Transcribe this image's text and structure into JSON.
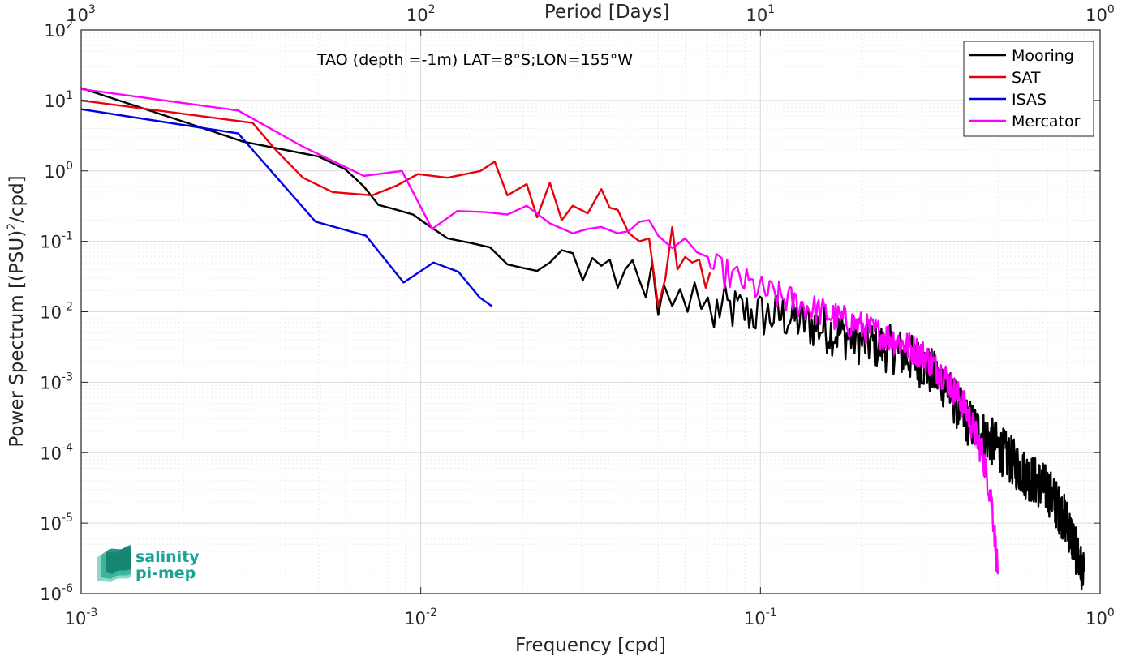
{
  "chart_data": {
    "type": "line",
    "annotation": "TAO (depth =-1m) LAT=8°S;LON=155°W",
    "xlabel": "Frequency [cpd]",
    "ylabel": "Power Spectrum [(PSU)",
    "ylabel_exponent": "2",
    "ylabel_suffix": "/cpd]",
    "top_xlabel": "Period [Days]",
    "xscale": "log",
    "yscale": "log",
    "xlim": [
      0.001,
      1
    ],
    "ylim": [
      1e-06,
      100
    ],
    "grid": true,
    "legend_position": "top-right",
    "x_ticks": [
      {
        "base": "10",
        "exp": "-3",
        "value": 0.001
      },
      {
        "base": "10",
        "exp": "-2",
        "value": 0.01
      },
      {
        "base": "10",
        "exp": "-1",
        "value": 0.1
      },
      {
        "base": "10",
        "exp": "0",
        "value": 1
      }
    ],
    "y_ticks": [
      {
        "base": "10",
        "exp": "-6",
        "value": 1e-06
      },
      {
        "base": "10",
        "exp": "-5",
        "value": 1e-05
      },
      {
        "base": "10",
        "exp": "-4",
        "value": 0.0001
      },
      {
        "base": "10",
        "exp": "-3",
        "value": 0.001
      },
      {
        "base": "10",
        "exp": "-2",
        "value": 0.01
      },
      {
        "base": "10",
        "exp": "-1",
        "value": 0.1
      },
      {
        "base": "10",
        "exp": "0",
        "value": 1
      },
      {
        "base": "10",
        "exp": "1",
        "value": 10
      },
      {
        "base": "10",
        "exp": "2",
        "value": 100
      }
    ],
    "top_ticks": [
      {
        "base": "10",
        "exp": "3",
        "value": 0.001
      },
      {
        "base": "10",
        "exp": "2",
        "value": 0.01
      },
      {
        "base": "10",
        "exp": "1",
        "value": 0.1
      },
      {
        "base": "10",
        "exp": "0",
        "value": 1
      }
    ],
    "series": [
      {
        "name": "Mooring",
        "color": "#000000",
        "generated_from": [
          [
            0.001,
            15
          ],
          [
            0.002,
            5
          ],
          [
            0.003,
            2.6
          ],
          [
            0.005,
            1.6
          ],
          [
            0.0065,
            0.8
          ],
          [
            0.0075,
            0.33
          ],
          [
            0.0095,
            0.25
          ],
          [
            0.011,
            0.17
          ],
          [
            0.012,
            0.11
          ],
          [
            0.014,
            0.095
          ],
          [
            0.016,
            0.082
          ],
          [
            0.018,
            0.047
          ],
          [
            0.02,
            0.042
          ],
          [
            0.023,
            0.038
          ],
          [
            0.026,
            0.05
          ],
          [
            0.028,
            0.07
          ],
          [
            0.031,
            0.04
          ],
          [
            0.035,
            0.042
          ],
          [
            0.04,
            0.035
          ],
          [
            0.045,
            0.03
          ],
          [
            0.05,
            0.018
          ],
          [
            0.06,
            0.016
          ],
          [
            0.07,
            0.012
          ],
          [
            0.08,
            0.011
          ],
          [
            0.1,
            0.009
          ],
          [
            0.12,
            0.0085
          ],
          [
            0.15,
            0.006
          ],
          [
            0.2,
            0.0038
          ],
          [
            0.25,
            0.0028
          ],
          [
            0.3,
            0.0018
          ],
          [
            0.35,
            0.0009
          ],
          [
            0.4,
            0.0003
          ],
          [
            0.5,
            0.00012
          ],
          [
            0.6,
            5e-05
          ],
          [
            0.7,
            3e-05
          ],
          [
            0.8,
            1e-05
          ],
          [
            0.85,
            4e-06
          ],
          [
            0.9,
            1.5e-06
          ]
        ],
        "x": [
          0.001,
          0.002,
          0.003,
          0.005,
          0.006,
          0.0068,
          0.0075,
          0.0085,
          0.0095,
          0.0105,
          0.012,
          0.014,
          0.016,
          0.018,
          0.02,
          0.022,
          0.024,
          0.026,
          0.028,
          0.03,
          0.032,
          0.034,
          0.036,
          0.038,
          0.04,
          0.042,
          0.044,
          0.046,
          0.048,
          0.05,
          0.052,
          0.055,
          0.058,
          0.061,
          0.064,
          0.067,
          0.07,
          0.073
        ],
        "values": [
          15,
          5,
          2.6,
          1.6,
          1.05,
          0.6,
          0.33,
          0.28,
          0.24,
          0.17,
          0.11,
          0.095,
          0.082,
          0.047,
          0.042,
          0.038,
          0.05,
          0.075,
          0.068,
          0.028,
          0.058,
          0.045,
          0.055,
          0.022,
          0.04,
          0.054,
          0.028,
          0.016,
          0.05,
          0.009,
          0.024,
          0.012,
          0.021,
          0.01,
          0.026,
          0.011,
          0.016,
          0.006
        ]
      },
      {
        "name": "SAT",
        "color": "#e8000b",
        "x": [
          0.001,
          0.0032,
          0.0037,
          0.0045,
          0.0055,
          0.0072,
          0.0085,
          0.0098,
          0.012,
          0.015,
          0.0165,
          0.018,
          0.0205,
          0.022,
          0.024,
          0.026,
          0.028,
          0.031,
          0.034,
          0.036,
          0.038,
          0.041,
          0.044,
          0.047,
          0.05,
          0.0525,
          0.055,
          0.057,
          0.06,
          0.063,
          0.066,
          0.069,
          0.071
        ],
        "values": [
          10,
          4.8,
          2.1,
          0.8,
          0.5,
          0.45,
          0.62,
          0.9,
          0.8,
          1.0,
          1.35,
          0.45,
          0.65,
          0.22,
          0.68,
          0.2,
          0.32,
          0.25,
          0.55,
          0.3,
          0.28,
          0.13,
          0.1,
          0.11,
          0.012,
          0.03,
          0.16,
          0.04,
          0.06,
          0.05,
          0.055,
          0.022,
          0.036
        ]
      },
      {
        "name": "ISAS",
        "color": "#0000e6",
        "x": [
          0.001,
          0.0029,
          0.0049,
          0.0069,
          0.0089,
          0.0109,
          0.0129,
          0.0149,
          0.0162
        ],
        "values": [
          7.5,
          3.4,
          0.19,
          0.12,
          0.026,
          0.05,
          0.037,
          0.016,
          0.012
        ]
      },
      {
        "name": "Mercator",
        "color": "#ff00ff",
        "generated_from": [
          [
            0.001,
            14.5
          ],
          [
            0.0029,
            7.2
          ],
          [
            0.0045,
            2.2
          ],
          [
            0.0068,
            0.85
          ],
          [
            0.0088,
            1.0
          ],
          [
            0.0108,
            0.15
          ],
          [
            0.0128,
            0.27
          ],
          [
            0.0155,
            0.26
          ],
          [
            0.018,
            0.24
          ],
          [
            0.0205,
            0.32
          ],
          [
            0.024,
            0.18
          ],
          [
            0.028,
            0.13
          ],
          [
            0.033,
            0.16
          ],
          [
            0.04,
            0.12
          ],
          [
            0.05,
            0.1
          ],
          [
            0.06,
            0.06
          ],
          [
            0.07,
            0.045
          ],
          [
            0.085,
            0.03
          ],
          [
            0.1,
            0.02
          ],
          [
            0.12,
            0.015
          ],
          [
            0.15,
            0.01
          ],
          [
            0.2,
            0.006
          ],
          [
            0.25,
            0.004
          ],
          [
            0.3,
            0.0025
          ],
          [
            0.35,
            0.0012
          ],
          [
            0.4,
            0.00045
          ],
          [
            0.45,
            0.0001
          ],
          [
            0.48,
            2e-05
          ],
          [
            0.5,
            2e-06
          ]
        ],
        "x": [
          0.001,
          0.0029,
          0.0045,
          0.0068,
          0.0088,
          0.0108,
          0.0128,
          0.0155,
          0.018,
          0.0205,
          0.024,
          0.028,
          0.031,
          0.034,
          0.038,
          0.041,
          0.044,
          0.047,
          0.05,
          0.055,
          0.06,
          0.065,
          0.07
        ],
        "values": [
          14.5,
          7.2,
          2.2,
          0.85,
          1.0,
          0.15,
          0.27,
          0.26,
          0.24,
          0.32,
          0.18,
          0.13,
          0.15,
          0.16,
          0.13,
          0.14,
          0.19,
          0.2,
          0.12,
          0.08,
          0.11,
          0.07,
          0.06
        ]
      }
    ]
  },
  "logo": {
    "line1": "salinity",
    "line2": "pi-mep",
    "color": "#1aa394"
  }
}
